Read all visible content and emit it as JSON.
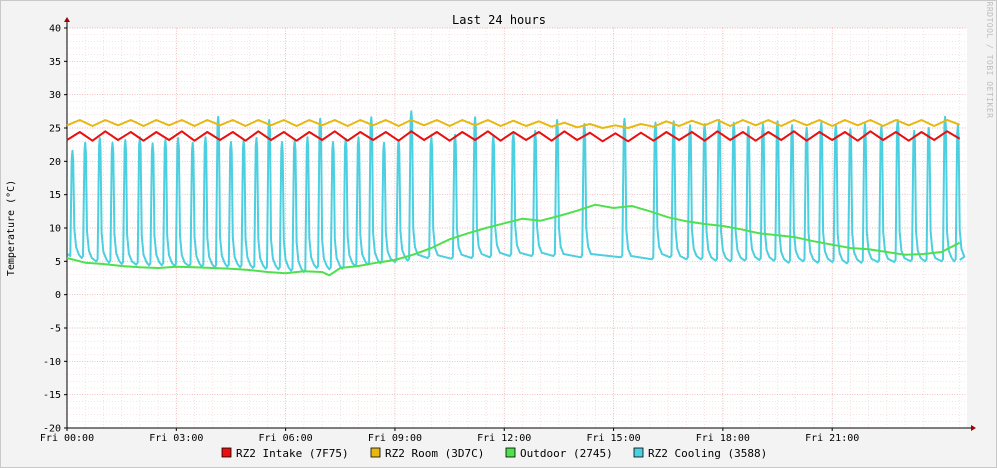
{
  "chart_data": {
    "type": "line",
    "title": "Last 24 hours",
    "ylabel": "Temperature (°C)",
    "watermark": "RRDTOOL / TOBI OETIKER",
    "ylim": [
      -20,
      40
    ],
    "yticks": [
      40,
      35,
      30,
      25,
      20,
      15,
      10,
      5,
      0,
      -5,
      -10,
      -15,
      -20
    ],
    "xlim": [
      0,
      24.7
    ],
    "xticks": [
      {
        "label": "Fri 00:00",
        "hour": 0
      },
      {
        "label": "Fri 03:00",
        "hour": 3
      },
      {
        "label": "Fri 06:00",
        "hour": 6
      },
      {
        "label": "Fri 09:00",
        "hour": 9
      },
      {
        "label": "Fri 12:00",
        "hour": 12
      },
      {
        "label": "Fri 15:00",
        "hour": 15
      },
      {
        "label": "Fri 18:00",
        "hour": 18
      },
      {
        "label": "Fri 21:00",
        "hour": 21
      }
    ],
    "grid": true,
    "legend_position": "bottom",
    "series": [
      {
        "name": "RZ2 Intake (7F75)",
        "color": "#e81010",
        "x": [
          0.0,
          0.35,
          0.7,
          1.05,
          1.4,
          1.75,
          2.1,
          2.45,
          2.8,
          3.15,
          3.5,
          3.85,
          4.2,
          4.55,
          4.9,
          5.25,
          5.6,
          5.95,
          6.3,
          6.65,
          7.0,
          7.35,
          7.7,
          8.05,
          8.4,
          8.75,
          9.1,
          9.45,
          9.8,
          10.15,
          10.5,
          10.85,
          11.2,
          11.55,
          11.9,
          12.25,
          12.6,
          12.95,
          13.3,
          13.65,
          14.0,
          14.35,
          14.7,
          15.05,
          15.4,
          15.75,
          16.1,
          16.45,
          16.8,
          17.15,
          17.5,
          17.85,
          18.2,
          18.55,
          18.9,
          19.25,
          19.6,
          19.95,
          20.3,
          20.65,
          21.0,
          21.35,
          21.7,
          22.05,
          22.4,
          22.75,
          23.1,
          23.45,
          23.8,
          24.15,
          24.5
        ],
        "values": [
          23.2,
          24.4,
          23.1,
          24.5,
          23.2,
          24.4,
          23.1,
          24.4,
          23.2,
          24.5,
          23.1,
          24.4,
          23.2,
          24.4,
          23.1,
          24.5,
          23.2,
          24.4,
          23.1,
          24.4,
          23.2,
          24.5,
          23.1,
          24.4,
          23.2,
          24.4,
          23.1,
          24.5,
          23.2,
          24.4,
          23.1,
          24.4,
          23.2,
          24.5,
          23.1,
          24.4,
          23.2,
          24.4,
          23.1,
          24.5,
          23.2,
          24.3,
          23.0,
          24.2,
          23.0,
          24.3,
          23.1,
          24.4,
          23.2,
          24.4,
          23.1,
          24.5,
          23.2,
          24.4,
          23.1,
          24.4,
          23.2,
          24.5,
          23.1,
          24.4,
          23.2,
          24.4,
          23.1,
          24.5,
          23.2,
          24.4,
          23.1,
          24.4,
          23.2,
          24.5,
          23.4
        ]
      },
      {
        "name": "RZ2 Room (3D7C)",
        "color": "#e8b810",
        "x": [
          0.0,
          0.35,
          0.7,
          1.05,
          1.4,
          1.75,
          2.1,
          2.45,
          2.8,
          3.15,
          3.5,
          3.85,
          4.2,
          4.55,
          4.9,
          5.25,
          5.6,
          5.95,
          6.3,
          6.65,
          7.0,
          7.35,
          7.7,
          8.05,
          8.4,
          8.75,
          9.1,
          9.45,
          9.8,
          10.15,
          10.5,
          10.85,
          11.2,
          11.55,
          11.9,
          12.25,
          12.6,
          12.95,
          13.3,
          13.65,
          14.0,
          14.35,
          14.7,
          15.05,
          15.4,
          15.75,
          16.1,
          16.45,
          16.8,
          17.15,
          17.5,
          17.85,
          18.2,
          18.55,
          18.9,
          19.25,
          19.6,
          19.95,
          20.3,
          20.65,
          21.0,
          21.35,
          21.7,
          22.05,
          22.4,
          22.75,
          23.1,
          23.45,
          23.8,
          24.15,
          24.5
        ],
        "values": [
          25.4,
          26.2,
          25.3,
          26.2,
          25.4,
          26.2,
          25.3,
          26.2,
          25.4,
          26.2,
          25.3,
          26.2,
          25.4,
          26.2,
          25.3,
          26.2,
          25.4,
          26.2,
          25.3,
          26.2,
          25.4,
          26.2,
          25.3,
          26.2,
          25.4,
          26.2,
          25.3,
          26.2,
          25.4,
          26.2,
          25.3,
          26.2,
          25.4,
          26.2,
          25.3,
          26.1,
          25.3,
          26.0,
          25.2,
          25.8,
          25.1,
          25.6,
          25.0,
          25.4,
          25.0,
          25.6,
          25.2,
          26.0,
          25.3,
          26.1,
          25.4,
          26.2,
          25.3,
          26.2,
          25.4,
          26.2,
          25.3,
          26.2,
          25.4,
          26.2,
          25.3,
          26.2,
          25.4,
          26.2,
          25.3,
          26.2,
          25.4,
          26.2,
          25.3,
          26.2,
          25.5
        ]
      },
      {
        "name": "Outdoor (2745)",
        "color": "#4fe04f",
        "x": [
          0.0,
          0.5,
          1.0,
          1.5,
          2.0,
          2.5,
          3.0,
          3.5,
          4.0,
          4.5,
          5.0,
          5.5,
          6.0,
          6.5,
          7.0,
          7.2,
          7.5,
          8.0,
          8.5,
          9.0,
          9.5,
          10.0,
          10.5,
          11.0,
          11.5,
          12.0,
          12.5,
          13.0,
          13.5,
          14.0,
          14.5,
          15.0,
          15.5,
          16.0,
          16.5,
          17.0,
          17.5,
          18.0,
          18.5,
          19.0,
          19.5,
          20.0,
          20.5,
          21.0,
          21.5,
          22.0,
          22.5,
          23.0,
          23.5,
          24.0,
          24.5
        ],
        "values": [
          5.5,
          4.8,
          4.6,
          4.3,
          4.1,
          4.0,
          4.2,
          4.1,
          4.0,
          3.9,
          3.7,
          3.4,
          3.2,
          3.5,
          3.4,
          2.9,
          4.0,
          4.3,
          4.8,
          5.2,
          6.0,
          7.0,
          8.3,
          9.2,
          10.0,
          10.7,
          11.4,
          11.1,
          11.8,
          12.6,
          13.5,
          13.0,
          13.3,
          12.5,
          11.6,
          11.0,
          10.6,
          10.3,
          9.8,
          9.2,
          8.9,
          8.6,
          8.0,
          7.5,
          7.0,
          6.8,
          6.4,
          6.0,
          6.1,
          6.4,
          7.8
        ]
      },
      {
        "name": "RZ2 Cooling (3588)",
        "color": "#4ccfe0",
        "peaks_hours": [
          0.15,
          0.5,
          0.9,
          1.25,
          1.6,
          2.0,
          2.35,
          2.7,
          3.05,
          3.45,
          3.8,
          4.15,
          4.5,
          4.85,
          5.2,
          5.55,
          5.9,
          6.25,
          6.6,
          6.95,
          7.3,
          7.65,
          8.0,
          8.35,
          8.7,
          9.1,
          9.45,
          10.0,
          10.65,
          11.2,
          11.7,
          12.25,
          12.85,
          13.45,
          14.2,
          15.3,
          16.15,
          16.65,
          17.1,
          17.5,
          17.9,
          18.3,
          18.7,
          19.1,
          19.5,
          19.9,
          20.3,
          20.7,
          21.1,
          21.5,
          21.9,
          22.35,
          22.8,
          23.25,
          23.65,
          24.1,
          24.45
        ],
        "peak_values": [
          21.6,
          22.8,
          23.5,
          22.8,
          23.2,
          23.6,
          22.7,
          23.2,
          23.5,
          22.8,
          23.6,
          26.7,
          22.9,
          23.2,
          23.5,
          26.2,
          22.9,
          23.2,
          23.6,
          26.4,
          22.9,
          23.4,
          23.6,
          26.6,
          22.8,
          23.2,
          27.5,
          23.6,
          24.0,
          26.6,
          23.8,
          24.2,
          24.6,
          26.2,
          25.6,
          26.4,
          25.8,
          26.0,
          25.4,
          25.6,
          26.2,
          25.8,
          25.2,
          25.6,
          26.0,
          25.4,
          25.0,
          25.8,
          25.4,
          24.8,
          25.6,
          25.2,
          26.2,
          24.6,
          25.0,
          26.7,
          25.4
        ],
        "trough_values": [
          5.5,
          5.0,
          4.8,
          4.6,
          4.5,
          4.4,
          4.4,
          4.3,
          4.3,
          4.2,
          4.1,
          4.2,
          4.1,
          4.0,
          3.9,
          3.8,
          3.6,
          3.4,
          4.0,
          3.8,
          3.9,
          4.3,
          4.5,
          4.7,
          4.9,
          5.1,
          5.5,
          5.4,
          5.5,
          5.6,
          5.8,
          5.8,
          5.8,
          5.6,
          5.6,
          5.3,
          5.6,
          5.3,
          5.3,
          5.1,
          5.0,
          5.1,
          5.2,
          5.1,
          4.8,
          5.0,
          4.8,
          4.9,
          4.7,
          4.8,
          4.9,
          4.9,
          5.0,
          5.0,
          5.0,
          5.0,
          5.2
        ]
      }
    ]
  }
}
